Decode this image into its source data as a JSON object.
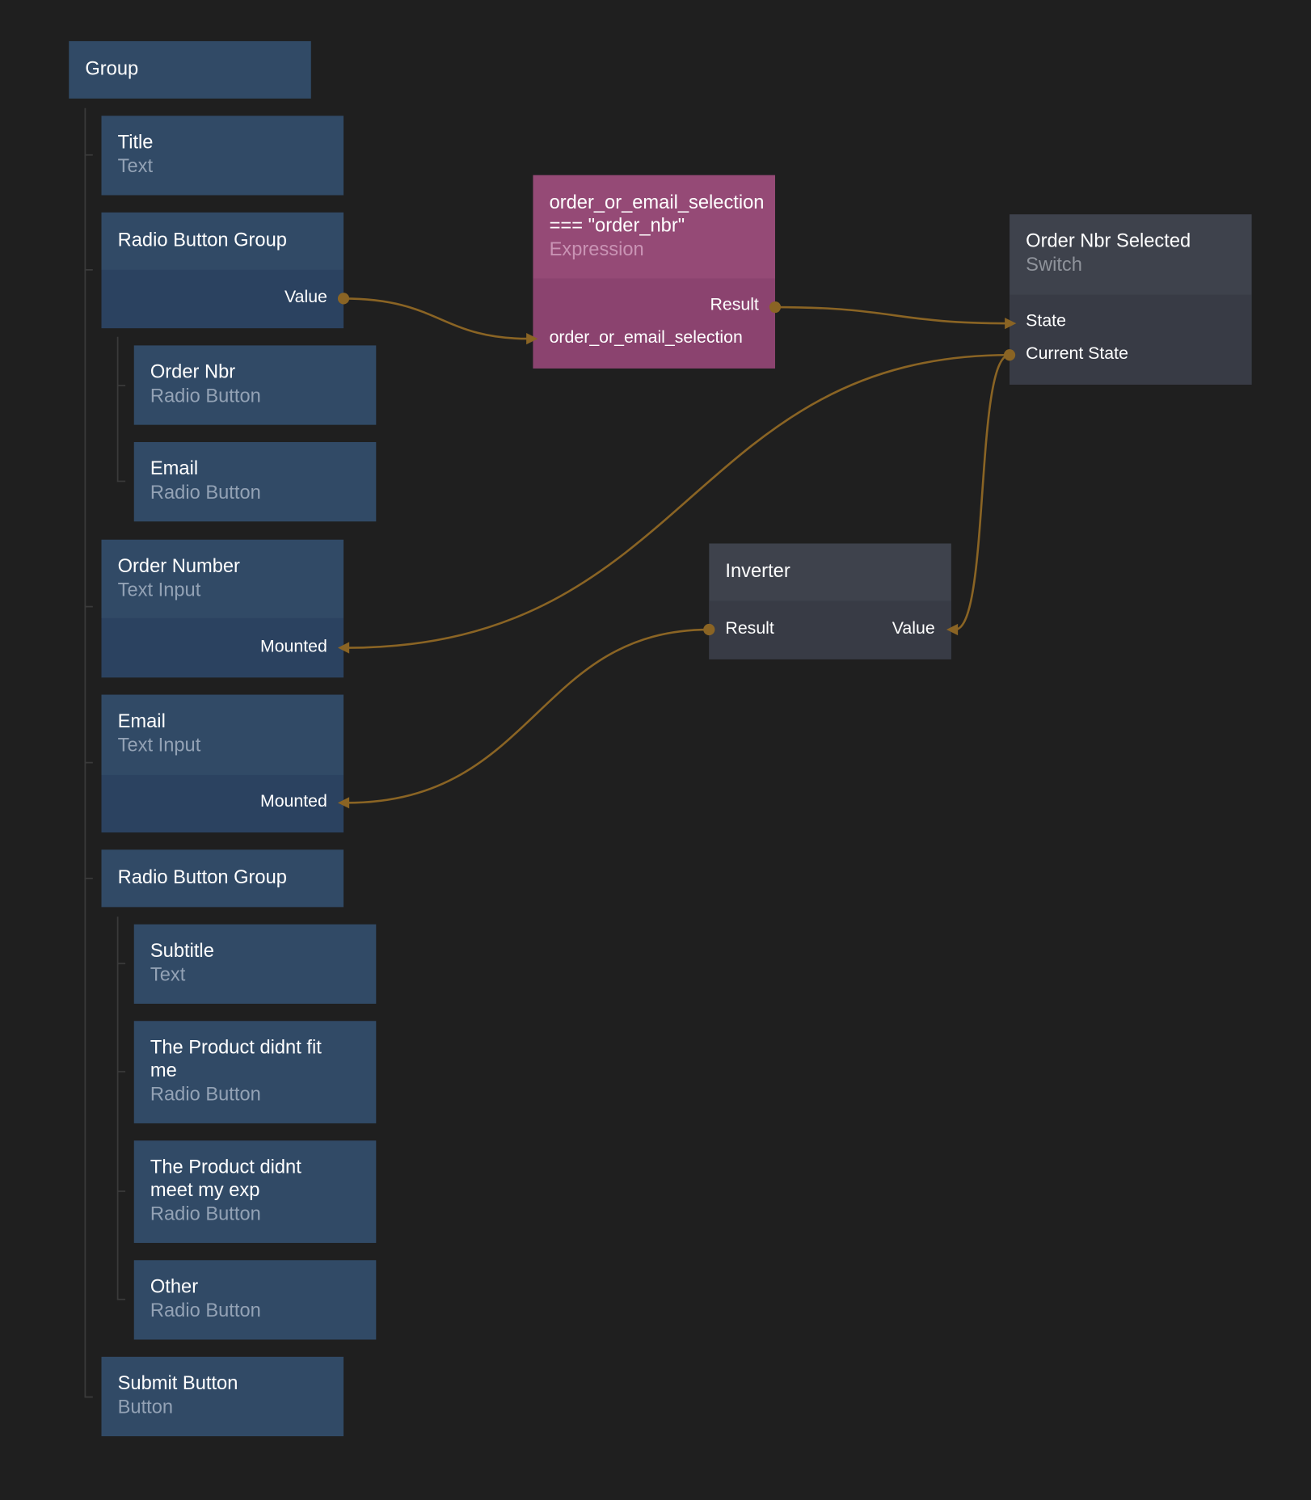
{
  "colors": {
    "background": "#1f1f1f",
    "visual_node": "#314a66",
    "expression_node": "#954a76",
    "logic_node": "#3e424c",
    "wire": "#8a6424"
  },
  "tree": {
    "group": {
      "title": "Group"
    },
    "title_text": {
      "title": "Title",
      "type": "Text"
    },
    "radio_group_1": {
      "title": "Radio Button Group",
      "type": "",
      "port_value": "Value"
    },
    "order_nbr": {
      "title": "Order Nbr",
      "type": "Radio Button"
    },
    "email_radio": {
      "title": "Email",
      "type": "Radio Button"
    },
    "order_number_input": {
      "title": "Order Number",
      "type": "Text Input",
      "port_mounted": "Mounted"
    },
    "email_input": {
      "title": "Email",
      "type": "Text Input",
      "port_mounted": "Mounted"
    },
    "radio_group_2": {
      "title": "Radio Button Group"
    },
    "subtitle": {
      "title": "Subtitle",
      "type": "Text"
    },
    "product_fit": {
      "title": "The Product didnt fit me",
      "type": "Radio Button"
    },
    "product_exp": {
      "title": "The Product didnt meet my exp",
      "type": "Radio Button"
    },
    "other": {
      "title": "Other",
      "type": "Radio Button"
    },
    "submit": {
      "title": "Submit Button",
      "type": "Button"
    }
  },
  "expression": {
    "title": "order_or_email_selection === \"order_nbr\"",
    "type": "Expression",
    "port_result": "Result",
    "port_input": "order_or_email_selection"
  },
  "switch": {
    "title": "Order Nbr Selected",
    "type": "Switch",
    "port_state": "State",
    "port_current": "Current State"
  },
  "inverter": {
    "title": "Inverter",
    "port_result": "Result",
    "port_value": "Value"
  }
}
